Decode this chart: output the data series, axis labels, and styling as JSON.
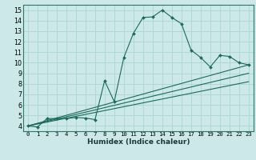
{
  "title": "",
  "xlabel": "Humidex (Indice chaleur)",
  "bg_color": "#cce8e8",
  "grid_color": "#aad4d0",
  "line_color": "#1a6b5a",
  "xlim": [
    -0.5,
    23.5
  ],
  "ylim": [
    3.5,
    15.5
  ],
  "xticks": [
    0,
    1,
    2,
    3,
    4,
    5,
    6,
    7,
    8,
    9,
    10,
    11,
    12,
    13,
    14,
    15,
    16,
    17,
    18,
    19,
    20,
    21,
    22,
    23
  ],
  "yticks": [
    4,
    5,
    6,
    7,
    8,
    9,
    10,
    11,
    12,
    13,
    14,
    15
  ],
  "main_line": {
    "x": [
      0,
      1,
      2,
      3,
      4,
      5,
      6,
      7,
      8,
      9,
      10,
      11,
      12,
      13,
      14,
      15,
      16,
      17,
      18,
      19,
      20,
      21,
      22,
      23
    ],
    "y": [
      4.0,
      3.9,
      4.7,
      4.7,
      4.7,
      4.8,
      4.75,
      4.6,
      8.3,
      6.3,
      10.5,
      12.8,
      14.3,
      14.35,
      15.0,
      14.3,
      13.7,
      11.2,
      10.5,
      9.6,
      10.7,
      10.6,
      10.0,
      9.8
    ]
  },
  "ref_lines": [
    {
      "x": [
        0,
        23
      ],
      "y": [
        4.0,
        9.8
      ]
    },
    {
      "x": [
        0,
        23
      ],
      "y": [
        4.0,
        9.0
      ]
    },
    {
      "x": [
        0,
        23
      ],
      "y": [
        4.0,
        8.2
      ]
    }
  ],
  "xlabel_fontsize": 6.5,
  "tick_fontsize_x": 5.2,
  "tick_fontsize_y": 5.8
}
